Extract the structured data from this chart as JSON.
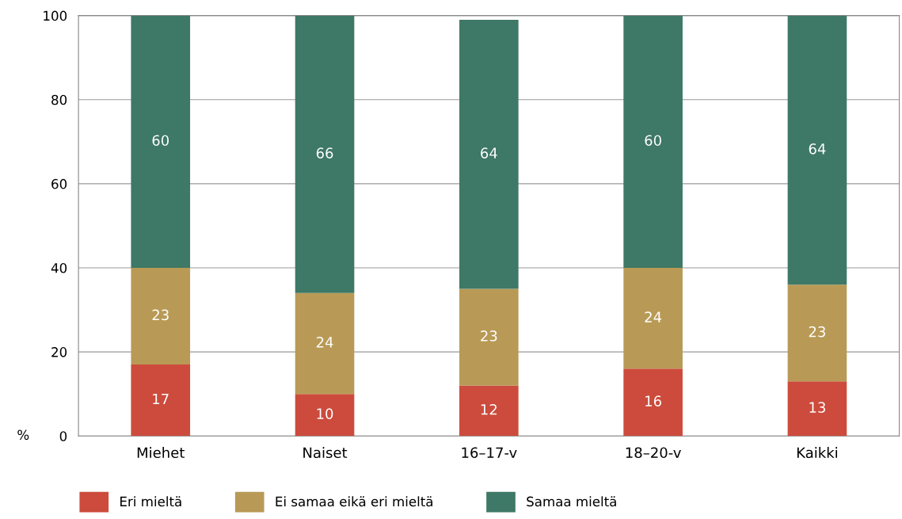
{
  "chart_data": {
    "type": "bar",
    "stacked": true,
    "ylabel": "%",
    "categories": [
      "Miehet",
      "Naiset",
      "16–17-v",
      "18–20-v",
      "Kaikki"
    ],
    "series": [
      {
        "name": "Eri mieltä",
        "color": "#cc4b3c",
        "values": [
          17,
          10,
          12,
          16,
          13
        ]
      },
      {
        "name": "Ei samaa eikä eri mieltä",
        "color": "#b89a56",
        "values": [
          23,
          24,
          23,
          24,
          23
        ]
      },
      {
        "name": "Samaa mieltä",
        "color": "#3e7866",
        "values": [
          60,
          66,
          64,
          60,
          64
        ]
      }
    ],
    "ylim": [
      0,
      100
    ],
    "yticks": [
      0,
      20,
      40,
      60,
      80,
      100
    ],
    "grid": "y",
    "legend": "bottom left",
    "data_labels": true
  }
}
